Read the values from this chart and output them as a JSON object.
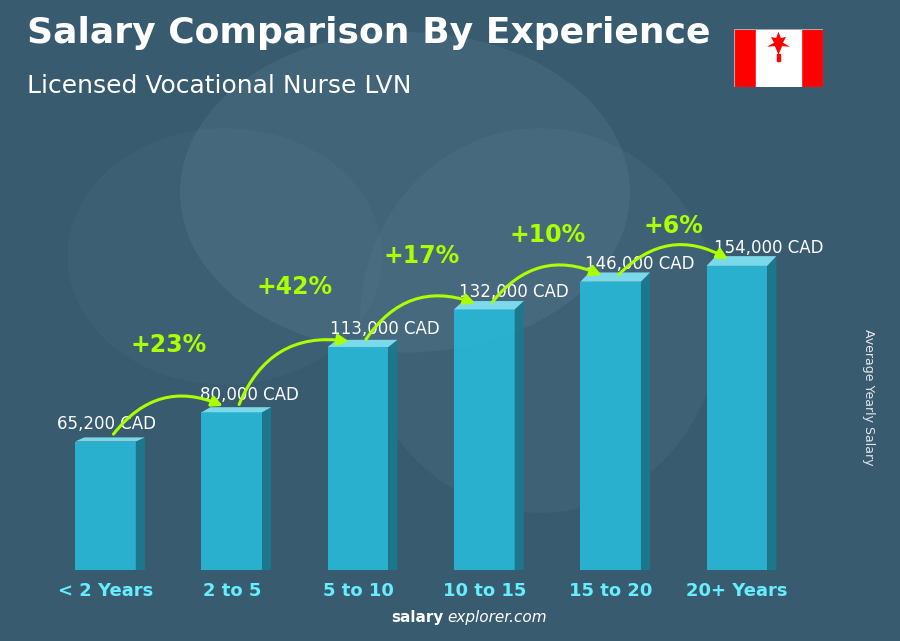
{
  "title": "Salary Comparison By Experience",
  "subtitle": "Licensed Vocational Nurse LVN",
  "ylabel": "Average Yearly Salary",
  "categories": [
    "< 2 Years",
    "2 to 5",
    "5 to 10",
    "10 to 15",
    "15 to 20",
    "20+ Years"
  ],
  "values": [
    65200,
    80000,
    113000,
    132000,
    146000,
    154000
  ],
  "value_labels": [
    "65,200 CAD",
    "80,000 CAD",
    "113,000 CAD",
    "132,000 CAD",
    "146,000 CAD",
    "154,000 CAD"
  ],
  "pct_changes": [
    null,
    "+23%",
    "+42%",
    "+17%",
    "+10%",
    "+6%"
  ],
  "face_color": "#29B8D8",
  "side_color": "#1A7A90",
  "top_color": "#7FE0F0",
  "bg_color": "#3A5A6A",
  "text_color": "#FFFFFF",
  "pct_color": "#AAFF00",
  "cat_color": "#66EEFF",
  "title_fontsize": 26,
  "subtitle_fontsize": 18,
  "tick_fontsize": 13,
  "val_fontsize": 12,
  "pct_fontsize": 17,
  "ylabel_fontsize": 9,
  "watermark_fontsize": 11,
  "ylim": [
    0,
    175000
  ],
  "watermark": "explorer.com",
  "watermark_bold": "salary"
}
